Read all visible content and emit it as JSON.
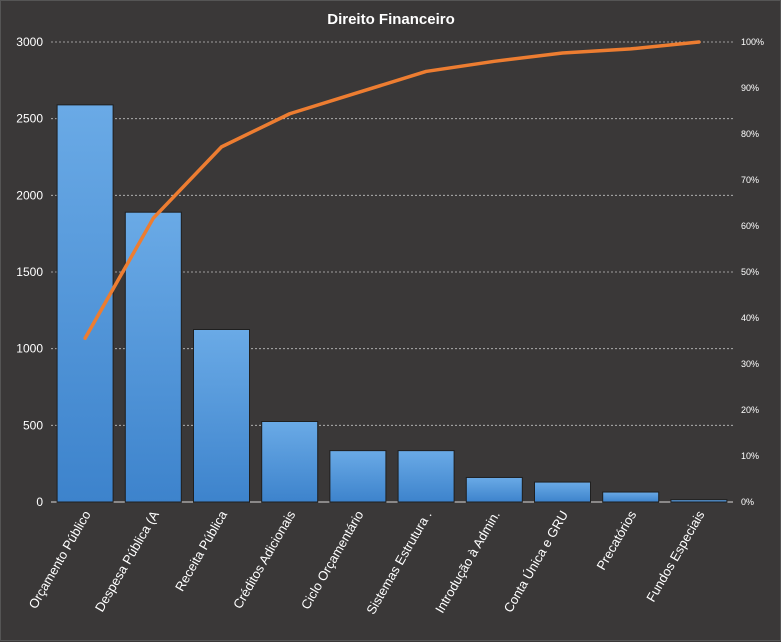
{
  "chart_data": {
    "type": "bar",
    "title": "Direito  Financeiro",
    "categories": [
      "Orçamento Público",
      "Despesa Pública (A",
      "Receita Pública",
      "Créditos Adicionais",
      "Ciclo Orçamentário",
      "Sistemas Estrutura .",
      "Introdução à Admin.",
      "Conta Única e GRU",
      "Precatórios",
      "Fundos Especiais"
    ],
    "series": [
      {
        "type": "bar",
        "axis": "left",
        "values": [
          2590,
          1890,
          1125,
          525,
          335,
          335,
          160,
          130,
          65,
          15
        ]
      },
      {
        "type": "line",
        "axis": "right",
        "values": [
          35.6,
          61.7,
          77.2,
          84.4,
          89.0,
          93.6,
          95.8,
          97.6,
          98.5,
          100
        ]
      }
    ],
    "ylim": [
      0,
      3000
    ],
    "yticks": [
      "0",
      "500",
      "1000",
      "1500",
      "2000",
      "2500",
      "3000"
    ],
    "y2lim": [
      0,
      100
    ],
    "y2ticks": [
      "0%",
      "10%",
      "20%",
      "30%",
      "40%",
      "50%",
      "60%",
      "70%",
      "80%",
      "90%",
      "100%"
    ],
    "grid": true,
    "colors": {
      "background": "#3a3838",
      "bar": "#4a90d9",
      "bar_highlight": "#6aaae6",
      "line": "#ed7d31",
      "text": "#ffffff"
    }
  }
}
